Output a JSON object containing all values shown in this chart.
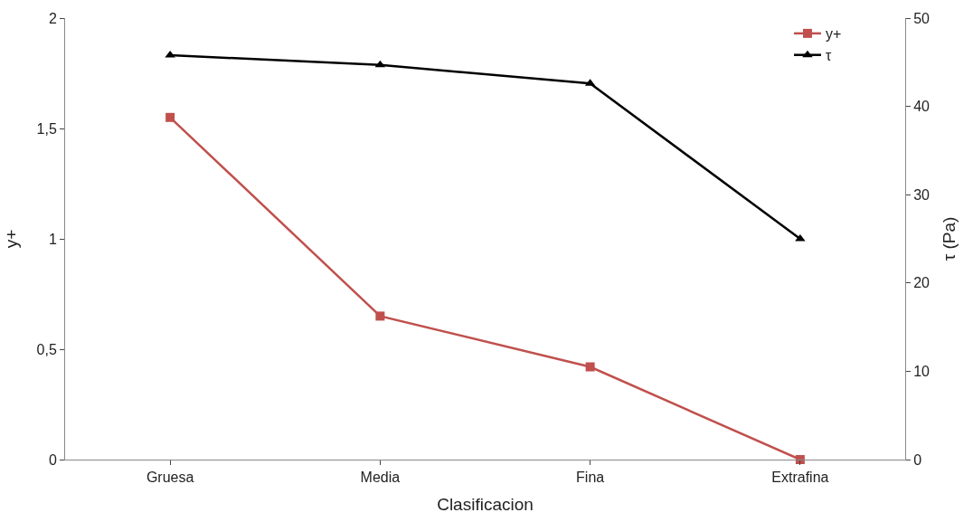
{
  "chart_data": {
    "type": "line",
    "xlabel": "Clasificacion",
    "ylabel": "y+",
    "y2label": "τ (Pa)",
    "categories": [
      "Gruesa",
      "Media",
      "Fina",
      "Extrafina"
    ],
    "series": [
      {
        "name": "y+",
        "color": "#c0504d",
        "marker": "square",
        "values": [
          1.55,
          0.65,
          0.42,
          0.0
        ]
      },
      {
        "name": "τ",
        "color": "#000000",
        "marker": "triangle",
        "axis": "y2",
        "values": [
          45.8,
          44.7,
          42.6,
          25
        ]
      }
    ],
    "ylim": [
      0,
      2
    ],
    "yticks": [
      0,
      {
        "value": 0.5,
        "label": "0,5"
      },
      1,
      {
        "value": 1.5,
        "label": "1,5"
      },
      2
    ],
    "y2lim": [
      0,
      50
    ],
    "y2ticks": [
      0,
      10,
      20,
      30,
      40,
      50
    ],
    "legend": "top right"
  }
}
